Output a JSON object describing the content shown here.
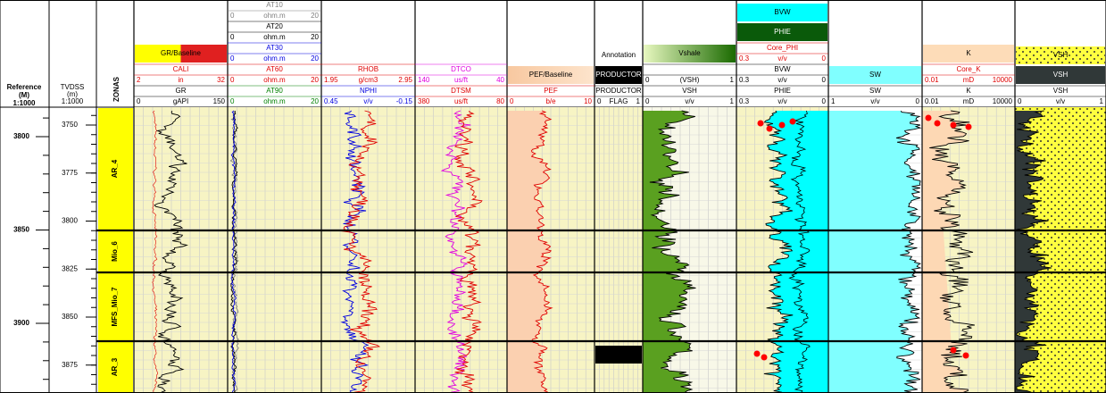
{
  "reference": {
    "label": [
      "Reference",
      "(M)",
      "1:1000"
    ],
    "ticks": [
      3800,
      3850,
      3900
    ]
  },
  "tvdss": {
    "label": [
      "TVDSS",
      "(m)",
      "1:1000"
    ],
    "ticks": [
      3750,
      3775,
      3800,
      3825,
      3850,
      3875
    ]
  },
  "zones": {
    "title": "ZONAS",
    "names": [
      "AR_4",
      "Mio_6",
      "MFS_Mio_7",
      "AR_3"
    ]
  },
  "tracks": [
    {
      "header": [
        {
          "name": "GR/Baseline",
          "fill": [
            "#ffff00",
            "#e02020"
          ]
        },
        {
          "name": "CALI",
          "color": "#e00000",
          "scale": [
            "2",
            "in",
            "32"
          ]
        },
        {
          "name": "GR",
          "color": "#000000",
          "scale": [
            "0",
            "gAPI",
            "150"
          ]
        }
      ]
    },
    {
      "header": [
        {
          "name": "AT10",
          "color": "#808080",
          "scale": [
            "0",
            "ohm.m",
            "20"
          ]
        },
        {
          "name": "AT20",
          "color": "#000000",
          "scale": [
            "0",
            "ohm.m",
            "20"
          ]
        },
        {
          "name": "AT30",
          "color": "#0000e0",
          "scale": [
            "0",
            "ohm.m",
            "20"
          ]
        },
        {
          "name": "AT60",
          "color": "#e00000",
          "scale": [
            "0",
            "ohm.m",
            "20"
          ]
        },
        {
          "name": "AT90",
          "color": "#008000",
          "scale": [
            "0",
            "ohm.m",
            "20"
          ]
        }
      ]
    },
    {
      "header": [
        {
          "name": "RHOB",
          "color": "#e00000",
          "scale": [
            "1.95",
            "g/cm3",
            "2.95"
          ]
        },
        {
          "name": "NPHI",
          "color": "#0000e0",
          "scale": [
            "0.45",
            "v/v",
            "-0.15"
          ]
        }
      ]
    },
    {
      "header": [
        {
          "name": "DTCO",
          "color": "#e000e0",
          "scale": [
            "140",
            "us/ft",
            "40"
          ]
        },
        {
          "name": "DTSM",
          "color": "#e00000",
          "scale": [
            "380",
            "us/ft",
            "80"
          ]
        }
      ]
    },
    {
      "header": [
        {
          "name": "PEF/Baseline",
          "fill": [
            "#f8c8a0",
            "#fde4cc"
          ]
        },
        {
          "name": "PEF",
          "color": "#e00000",
          "scale": [
            "0",
            "b/e",
            "10"
          ]
        }
      ]
    },
    {
      "header": [
        {
          "name": "Annotation",
          "label": true
        },
        {
          "name": "PRODUCTOR",
          "fill": [
            "#000000"
          ],
          "text": "#ffffff"
        },
        {
          "name": "PRODUCTOR",
          "color": "#000000",
          "scale": [
            "0",
            "FLAG",
            "1"
          ]
        }
      ]
    },
    {
      "header": [
        {
          "name": "Vshale",
          "fill": [
            "#e8f8c0",
            "#1a6a00"
          ]
        },
        {
          "name": "",
          "color": "#000000",
          "scale": [
            "0",
            "(VSH)",
            "1"
          ],
          "noname": true
        },
        {
          "name": "VSH",
          "color": "#000000",
          "scale": [
            "0",
            "v/v",
            "1"
          ]
        }
      ]
    },
    {
      "header": [
        {
          "name": "BVW",
          "fill": [
            "#00ffff"
          ]
        },
        {
          "name": "PHIE",
          "fill": [
            "#0a5a0a"
          ],
          "text": "#ffffff"
        },
        {
          "name": "Core_PHI",
          "color": "#e00000",
          "scale": [
            "0.3",
            "v/v",
            "0"
          ]
        },
        {
          "name": "BVW",
          "color": "#000000",
          "scale": [
            "0.3",
            "v/v",
            "0"
          ]
        },
        {
          "name": "PHIE",
          "color": "#000000",
          "scale": [
            "0.3",
            "v/v",
            "0"
          ]
        }
      ]
    },
    {
      "header": [
        {
          "name": "SW",
          "fill": [
            "#80ffff"
          ]
        },
        {
          "name": "SW",
          "color": "#000000",
          "scale": [
            "1",
            "v/v",
            "0"
          ]
        }
      ]
    },
    {
      "header": [
        {
          "name": "K",
          "fill": [
            "#fddcb8"
          ]
        },
        {
          "name": "Core_K",
          "color": "#e00000",
          "scale": [
            "0.01",
            "mD",
            "10000"
          ]
        },
        {
          "name": "K",
          "color": "#000000",
          "scale": [
            "0.01",
            "mD",
            "10000"
          ]
        }
      ]
    },
    {
      "header": [
        {
          "name": "VSH",
          "fill": [
            "#ffff40"
          ],
          "dots": true
        },
        {
          "name": "VSH",
          "fill": [
            "#303838"
          ],
          "text": "#ffffff"
        },
        {
          "name": "VSH",
          "color": "#000000",
          "scale": [
            "0",
            "v/v",
            "1"
          ]
        }
      ]
    }
  ]
}
